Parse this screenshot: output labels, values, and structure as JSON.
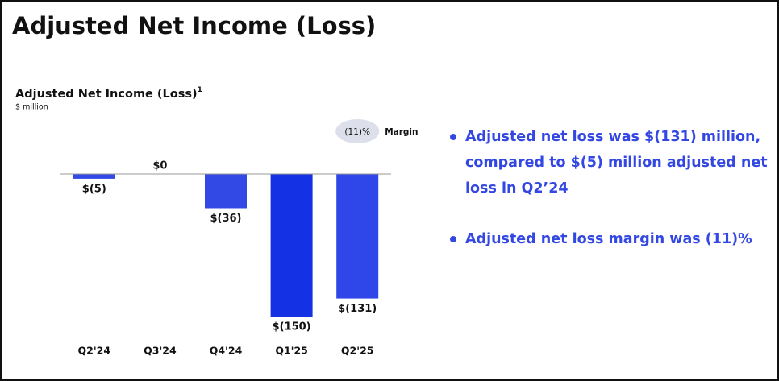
{
  "header": {
    "title": "Adjusted Net Income (Loss)"
  },
  "chart_data": {
    "type": "bar",
    "title": "Adjusted Net Income (Loss)",
    "title_footnote": "1",
    "subtitle": "$ million",
    "categories": [
      "Q2'24",
      "Q3'24",
      "Q4'24",
      "Q1'25",
      "Q2'25"
    ],
    "values": [
      -5,
      0,
      -36,
      -150,
      -131
    ],
    "value_labels": [
      "$(5)",
      "$0",
      "$(36)",
      "$(150)",
      "$(131)"
    ],
    "colors": [
      "#3249e6",
      "#3249e6",
      "#3249e6",
      "#1432e3",
      "#2f46e8"
    ],
    "ylim": [
      -150,
      0
    ],
    "margin": {
      "label": "Margin",
      "values": [
        null,
        null,
        null,
        null,
        -11
      ],
      "value_labels": [
        null,
        null,
        null,
        null,
        "(11)%"
      ]
    }
  },
  "bullets": [
    "Adjusted net loss was $(131) million, compared to $(5) million adjusted net loss in Q2’24",
    "Adjusted net loss margin was (11)%"
  ]
}
